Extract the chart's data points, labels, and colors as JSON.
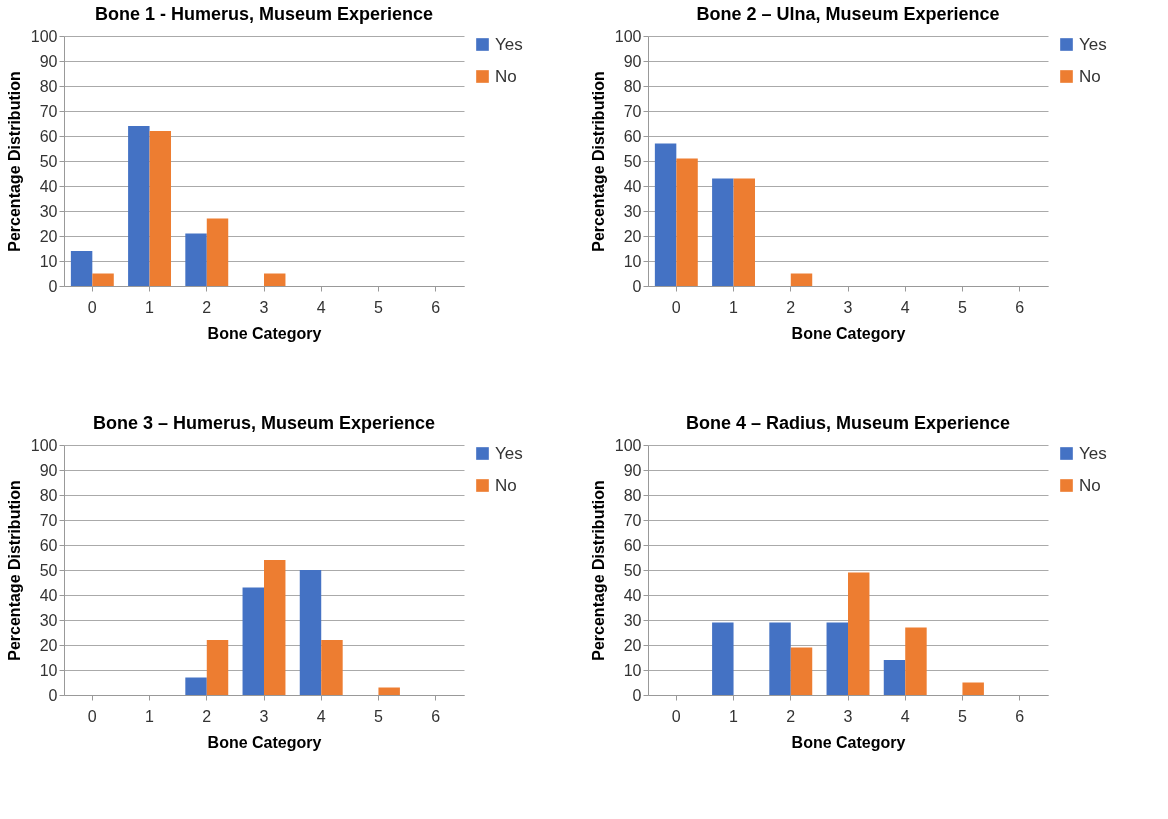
{
  "chart_data": [
    {
      "type": "bar",
      "title": "Bone 1  - Humerus, Museum Experience",
      "xlabel": "Bone Category",
      "ylabel": "Percentage Distribution",
      "categories": [
        "0",
        "1",
        "2",
        "3",
        "4",
        "5",
        "6"
      ],
      "series": [
        {
          "name": "Yes",
          "color": "#4472c4",
          "values": [
            14,
            64,
            21,
            0,
            0,
            0,
            0
          ]
        },
        {
          "name": "No",
          "color": "#ed7d31",
          "values": [
            5,
            62,
            27,
            5,
            0,
            0,
            0
          ]
        }
      ],
      "ylim": [
        0,
        100
      ],
      "yticks": [
        0,
        10,
        20,
        30,
        40,
        50,
        60,
        70,
        80,
        90,
        100
      ],
      "grid": "y",
      "legend": "right"
    },
    {
      "type": "bar",
      "title": "Bone 2 – Ulna, Museum Experience",
      "xlabel": "Bone Category",
      "ylabel": "Percentage Distribution",
      "categories": [
        "0",
        "1",
        "2",
        "3",
        "4",
        "5",
        "6"
      ],
      "series": [
        {
          "name": "Yes",
          "color": "#4472c4",
          "values": [
            57,
            43,
            0,
            0,
            0,
            0,
            0
          ]
        },
        {
          "name": "No",
          "color": "#ed7d31",
          "values": [
            51,
            43,
            5,
            0,
            0,
            0,
            0
          ]
        }
      ],
      "ylim": [
        0,
        100
      ],
      "yticks": [
        0,
        10,
        20,
        30,
        40,
        50,
        60,
        70,
        80,
        90,
        100
      ],
      "grid": "y",
      "legend": "right"
    },
    {
      "type": "bar",
      "title": "Bone 3 – Humerus,  Museum Experience",
      "xlabel": "Bone Category",
      "ylabel": "Percentage Distribution",
      "categories": [
        "0",
        "1",
        "2",
        "3",
        "4",
        "5",
        "6"
      ],
      "series": [
        {
          "name": "Yes",
          "color": "#4472c4",
          "values": [
            0,
            0,
            7,
            43,
            50,
            0,
            0
          ]
        },
        {
          "name": "No",
          "color": "#ed7d31",
          "values": [
            0,
            0,
            22,
            54,
            22,
            3,
            0
          ]
        }
      ],
      "ylim": [
        0,
        100
      ],
      "yticks": [
        0,
        10,
        20,
        30,
        40,
        50,
        60,
        70,
        80,
        90,
        100
      ],
      "grid": "y",
      "legend": "right"
    },
    {
      "type": "bar",
      "title": "Bone 4 – Radius, Museum Experience",
      "xlabel": "Bone Category",
      "ylabel": "Percentage Distribution",
      "categories": [
        "0",
        "1",
        "2",
        "3",
        "4",
        "5",
        "6"
      ],
      "series": [
        {
          "name": "Yes",
          "color": "#4472c4",
          "values": [
            0,
            29,
            29,
            29,
            14,
            0,
            0
          ]
        },
        {
          "name": "No",
          "color": "#ed7d31",
          "values": [
            0,
            0,
            19,
            49,
            27,
            5,
            0
          ]
        }
      ],
      "ylim": [
        0,
        100
      ],
      "yticks": [
        0,
        10,
        20,
        30,
        40,
        50,
        60,
        70,
        80,
        90,
        100
      ],
      "grid": "y",
      "legend": "right"
    }
  ]
}
